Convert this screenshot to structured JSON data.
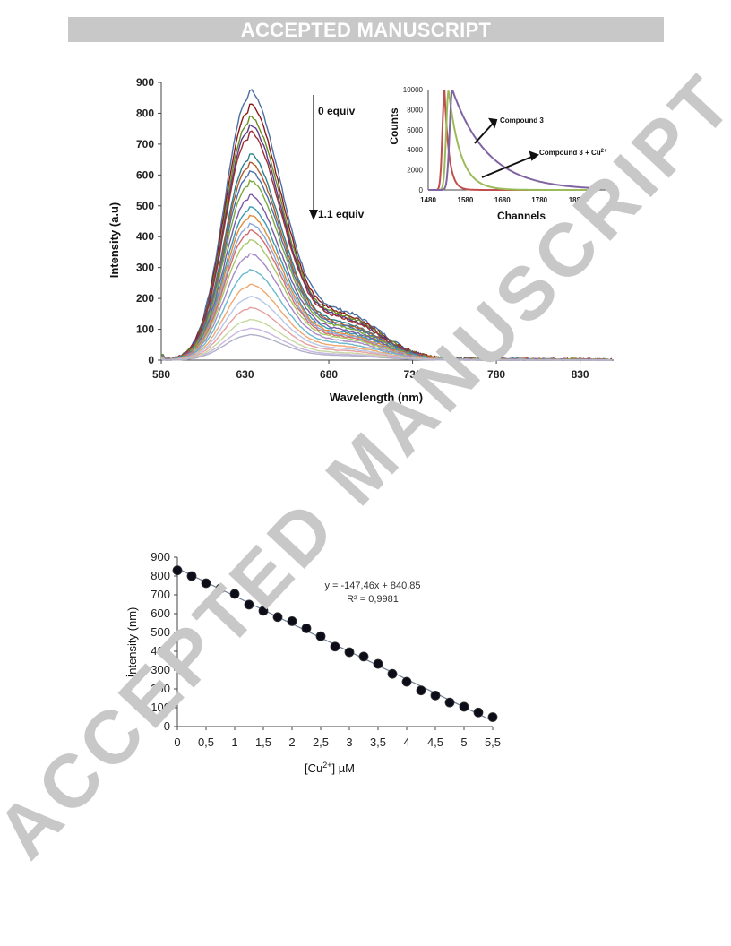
{
  "header": {
    "banner": "ACCEPTED MANUSCRIPT"
  },
  "watermark": "ACCEPTED MANUSCRIPT",
  "chart_data": [
    {
      "type": "line",
      "xlabel": "Wavelength (nm)",
      "ylabel": "Intensity (a.u)",
      "xlim": [
        580,
        850
      ],
      "ylim": [
        0,
        900
      ],
      "xticks": [
        580,
        630,
        680,
        730,
        780,
        830
      ],
      "yticks": [
        0,
        100,
        200,
        300,
        400,
        500,
        600,
        700,
        800,
        900
      ],
      "peak_wavelength": 632,
      "peak_intensities": [
        848,
        805,
        768,
        740,
        718,
        648,
        622,
        595,
        565,
        520,
        482,
        455,
        430,
        408,
        378,
        335,
        285,
        238,
        200,
        165,
        128,
        100,
        80
      ],
      "series_colors": [
        "#4a6fa5",
        "#8b1a1a",
        "#6b8e23",
        "#5b3a8c",
        "#9a2f2f",
        "#2e7f8f",
        "#b05a2a",
        "#4f6fa8",
        "#7aa83c",
        "#7b5aa6",
        "#3a9ab0",
        "#e08a3a",
        "#8aa9d6",
        "#d66a6a",
        "#a8c86a",
        "#a78ac6",
        "#6bb8cc",
        "#f0a870",
        "#b8c8e6",
        "#e6a0a0",
        "#c8d8a0",
        "#c8b8e0",
        "#b0b0c8"
      ],
      "grid": false,
      "annotations": {
        "start": "0 equiv",
        "end": "1.1 equiv"
      },
      "inset": {
        "type": "line",
        "xlabel": "Channels",
        "ylabel": "Counts",
        "xlim": [
          1480,
          1980
        ],
        "ylim": [
          0,
          10000
        ],
        "xticks": [
          1480,
          1580,
          1680,
          1780,
          1880
        ],
        "yticks": [
          0,
          2000,
          4000,
          6000,
          8000,
          10000
        ],
        "labels": {
          "compound": "Compound 3",
          "complex_base": "Compound 3 + Cu",
          "complex_sup": "2+"
        },
        "series_colors": [
          "#c0504d",
          "#9bbb59",
          "#8064a2"
        ]
      }
    },
    {
      "type": "scatter",
      "xlabel_base": "[Cu",
      "xlabel_sup": "2+",
      "xlabel_tail": "] µM",
      "ylabel": "İntensity (nm)",
      "xlim": [
        0,
        5.5
      ],
      "ylim": [
        0,
        900
      ],
      "xticks": [
        "0",
        "0,5",
        "1",
        "1,5",
        "2",
        "2,5",
        "3",
        "3,5",
        "4",
        "4,5",
        "5",
        "5,5"
      ],
      "yticks": [
        0,
        100,
        200,
        300,
        400,
        500,
        600,
        700,
        800,
        900
      ],
      "x": [
        0,
        0.25,
        0.5,
        0.75,
        1.0,
        1.25,
        1.5,
        1.75,
        2.0,
        2.25,
        2.5,
        2.75,
        3.0,
        3.25,
        3.5,
        3.75,
        4.0,
        4.25,
        4.5,
        4.75,
        5.0,
        5.25,
        5.5
      ],
      "y": [
        830,
        800,
        762,
        733,
        705,
        648,
        615,
        582,
        560,
        522,
        480,
        425,
        395,
        372,
        333,
        280,
        238,
        192,
        165,
        128,
        105,
        75,
        50
      ],
      "trendline": {
        "slope": -147.46,
        "intercept": 840.85
      },
      "equation": "y = -147,46x + 840,85",
      "r_squared": "R² = 0,9981"
    }
  ]
}
